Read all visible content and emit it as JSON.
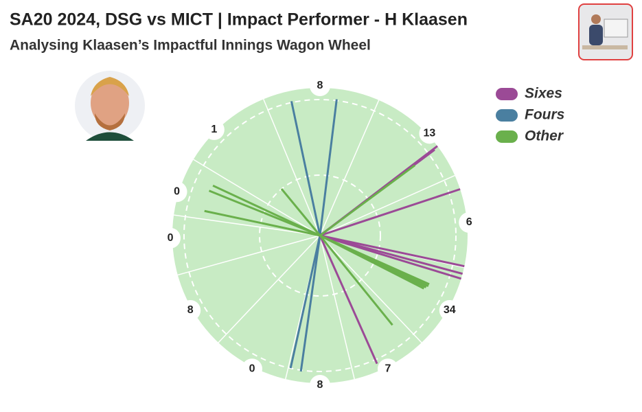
{
  "header": {
    "title": "SA20 2024, DSG vs MICT | Impact Performer - H Klaasen",
    "subtitle": "Analysing Klaasen’s Impactful Innings Wagon Wheel"
  },
  "legend": [
    {
      "name": "Sixes",
      "color": "#9b4a96"
    },
    {
      "name": "Fours",
      "color": "#4a7fa0"
    },
    {
      "name": "Other",
      "color": "#6ab04c"
    }
  ],
  "sector_runs": [
    8,
    13,
    6,
    34,
    7,
    8,
    0,
    8,
    0,
    0,
    1
  ]
}
